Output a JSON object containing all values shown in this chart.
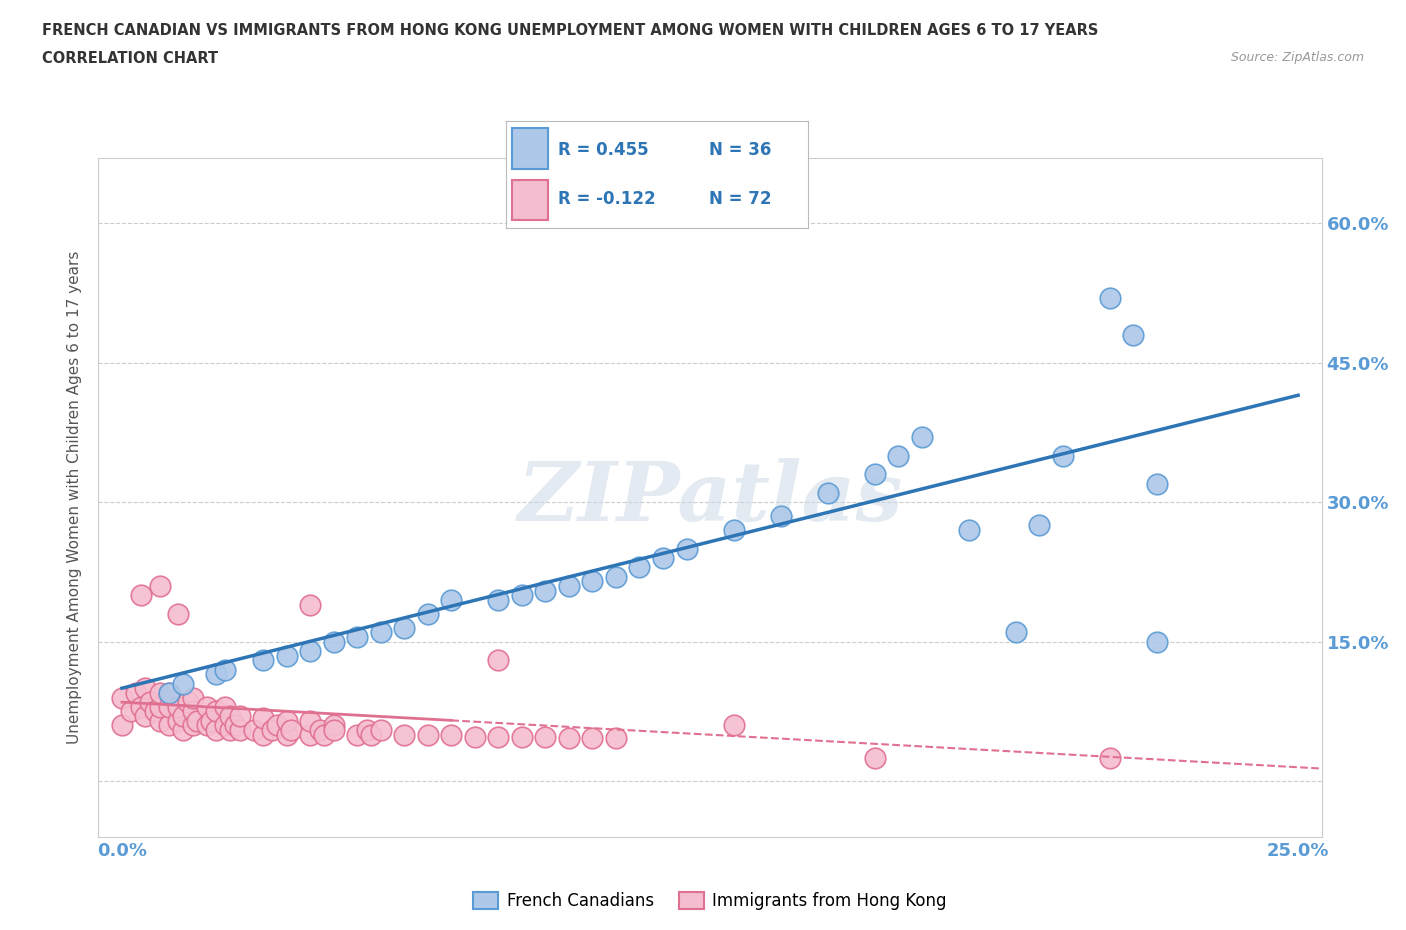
{
  "title_line1": "FRENCH CANADIAN VS IMMIGRANTS FROM HONG KONG UNEMPLOYMENT AMONG WOMEN WITH CHILDREN AGES 6 TO 17 YEARS",
  "title_line2": "CORRELATION CHART",
  "source": "Source: ZipAtlas.com",
  "ylabel_left": "Unemployment Among Women with Children Ages 6 to 17 years",
  "xlim": [
    0.0,
    0.25
  ],
  "ylim": [
    -0.05,
    0.65
  ],
  "r_blue": 0.455,
  "n_blue": 36,
  "r_pink": -0.122,
  "n_pink": 72,
  "blue_color": "#adc8e8",
  "blue_edge_color": "#5b9bd5",
  "pink_color": "#f5bdd0",
  "pink_edge_color": "#e07090",
  "grid_color": "#cccccc",
  "watermark_text": "ZIPatlas",
  "blue_line_color": "#2e75b6",
  "pink_line_color": "#e07090",
  "tick_color": "#5b9bd5",
  "legend_text_color": "#2e75b6",
  "x_tick_labels": [
    "0.0%",
    "",
    "",
    "",
    "",
    "25.0%"
  ],
  "y_tick_labels_right": [
    "",
    "15.0%",
    "30.0%",
    "45.0%",
    "60.0%"
  ]
}
